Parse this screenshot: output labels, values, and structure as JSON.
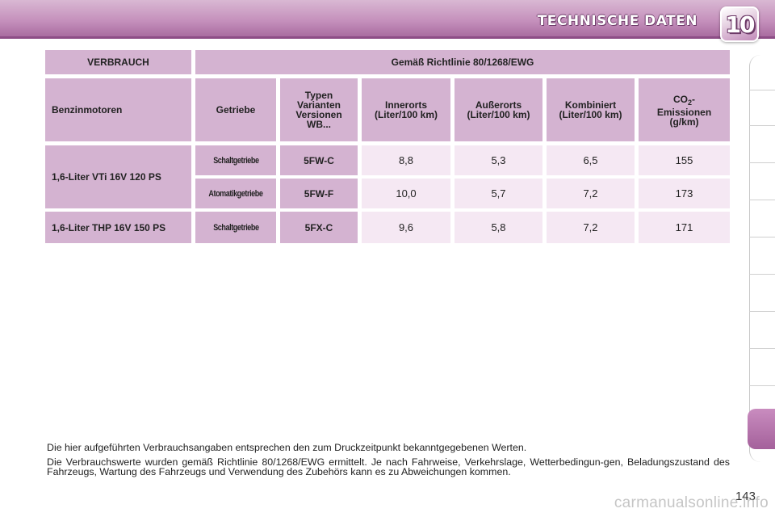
{
  "header": {
    "title": "TECHNISCHE DATEN",
    "chapter": "10"
  },
  "table": {
    "consumption_header": "VERBRAUCH",
    "directive_header": "Gemäß Richtlinie 80/1268/EWG",
    "columns": {
      "engines": "Benzinmotoren",
      "gearbox": "Getriebe",
      "types": "Typen Varianten Versionen WB...",
      "urban": "Innerorts (Liter/100 km)",
      "extra_urban": "Außerorts (Liter/100 km)",
      "combined": "Kombiniert (Liter/100 km)",
      "co2_prefix": "CO",
      "co2_sub": "2",
      "co2_suffix": "- Emissionen (g/km)"
    },
    "rows": [
      {
        "engine": "1,6-Liter VTi 16V 120 PS",
        "gearbox": "Schaltgetriebe",
        "type": "5FW-C",
        "urban": "8,8",
        "extra_urban": "5,3",
        "combined": "6,5",
        "co2": "155"
      },
      {
        "engine": "",
        "gearbox": "Atomatikgetriebe",
        "type": "5FW-F",
        "urban": "10,0",
        "extra_urban": "5,7",
        "combined": "7,2",
        "co2": "173"
      },
      {
        "engine": "1,6-Liter THP 16V 150 PS",
        "gearbox": "Schaltgetriebe",
        "type": "5FX-C",
        "urban": "9,6",
        "extra_urban": "5,8",
        "combined": "7,2",
        "co2": "171"
      }
    ]
  },
  "notes": {
    "p1": "Die hier aufgeführten Verbrauchsangaben entsprechen den zum Druckzeitpunkt bekanntgegebenen Werten.",
    "p2": "Die Verbrauchswerte wurden gemäß Richtlinie 80/1268/EWG ermittelt. Je nach Fahrweise, Verkehrslage, Wetterbedingun-gen, Beladungszustand des Fahrzeugs, Wartung des Fahrzeugs und Verwendung des Zubehörs kann es zu Abweichungen kommen."
  },
  "page_number": "143",
  "watermark": "carmanualsonline.info"
}
